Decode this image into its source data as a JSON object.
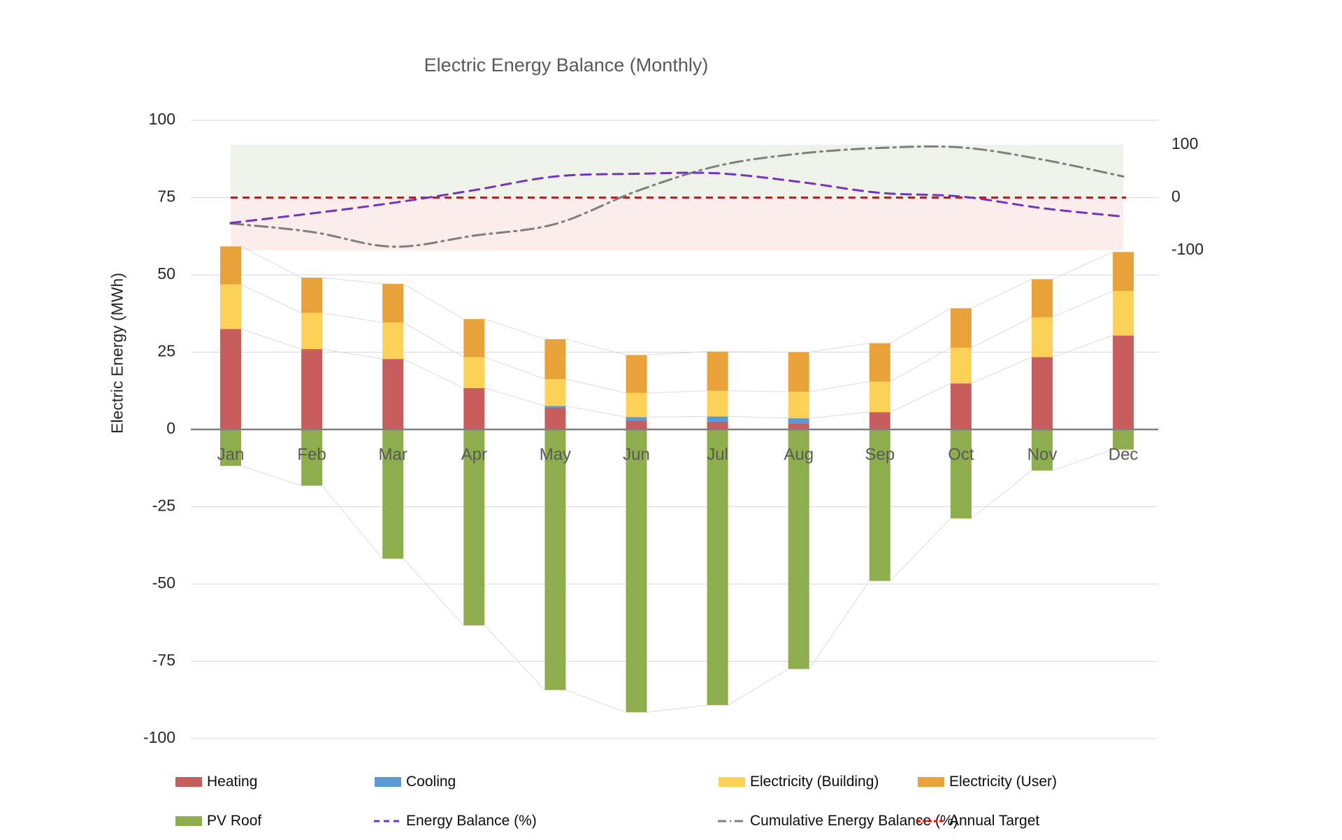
{
  "window": {
    "background": "#ffffff"
  },
  "chart_data": {
    "type": "bar",
    "subtype": "stacked-bar-with-lines-combo",
    "title": "Electric Energy Balance (Monthly)",
    "ylabel_left": "Electric Energy (MWh)",
    "categories": [
      "Jan",
      "Feb",
      "Mar",
      "Apr",
      "May",
      "Jun",
      "Jul",
      "Aug",
      "Sep",
      "Oct",
      "Nov",
      "Dec"
    ],
    "axis_left": {
      "min": -100,
      "max": 100,
      "step": 25,
      "ticks": [
        100,
        75,
        50,
        25,
        0,
        -25,
        -50,
        -75,
        -100
      ],
      "unit": "MWh"
    },
    "axis_right": {
      "min": -100,
      "max": 100,
      "ticks": [
        100,
        0,
        -100
      ],
      "unit": "%"
    },
    "grid": true,
    "legend_position": "bottom",
    "series": [
      {
        "name": "Heating",
        "type": "bar",
        "axis": "left",
        "color": "#C75D5C",
        "values": [
          32.5,
          26.0,
          22.8,
          13.4,
          6.9,
          2.9,
          2.5,
          2.0,
          5.6,
          14.9,
          23.4,
          30.4
        ]
      },
      {
        "name": "Cooling",
        "type": "bar",
        "axis": "left",
        "color": "#5B9BD5",
        "values": [
          0,
          0,
          0,
          0,
          0.7,
          1.1,
          1.7,
          1.6,
          0,
          0,
          0,
          0
        ]
      },
      {
        "name": "Electricity (Building)",
        "type": "bar",
        "axis": "left",
        "color": "#FBD158",
        "values": [
          14.4,
          11.7,
          11.8,
          10.0,
          8.7,
          7.8,
          8.3,
          8.6,
          9.9,
          11.5,
          12.9,
          14.4
        ]
      },
      {
        "name": "Electricity (User)",
        "type": "bar",
        "axis": "left",
        "color": "#E9A23A",
        "values": [
          12.3,
          11.4,
          12.5,
          12.3,
          12.9,
          12.3,
          12.7,
          12.8,
          12.4,
          12.8,
          12.3,
          12.6
        ]
      },
      {
        "name": "PV Roof",
        "type": "bar",
        "axis": "left",
        "color": "#8EAE4E",
        "values": [
          -11.8,
          -18.2,
          -41.8,
          -63.4,
          -84.3,
          -91.5,
          -89.2,
          -77.5,
          -49.0,
          -28.8,
          -13.3,
          -6.5
        ]
      },
      {
        "name": "Energy Balance (%)",
        "type": "line",
        "axis": "right",
        "color": "#7533C4",
        "style": "dashed",
        "values": [
          -48,
          -30,
          -10,
          14,
          40,
          45,
          46,
          30,
          9,
          2,
          -20,
          -36
        ]
      },
      {
        "name": "Cumulative Energy Balance  (%)",
        "type": "line",
        "axis": "right",
        "color": "#7F7F7F",
        "style": "dash-dot",
        "values": [
          -49,
          -65,
          -93,
          -72,
          -50,
          12,
          60,
          83,
          94,
          95,
          72,
          40
        ]
      },
      {
        "name": "Annual Target",
        "type": "line",
        "axis": "right",
        "color": "#FF0000",
        "style": "short-dash",
        "values": [
          0,
          0,
          0,
          0,
          0,
          0,
          0,
          0,
          0,
          0,
          0,
          0
        ]
      }
    ],
    "bands": [
      {
        "name": "positive-band",
        "axis": "right",
        "from": 0,
        "to": 100,
        "color": "#EFF2E8"
      },
      {
        "name": "negative-band",
        "axis": "right",
        "from": -100,
        "to": 0,
        "color": "#FCEDED"
      }
    ]
  },
  "legend": {
    "rows": [
      {
        "items": [
          {
            "label": "Heating",
            "swatch": "rect",
            "color": "#C75D5C"
          },
          {
            "label": "Cooling",
            "swatch": "rect",
            "color": "#5B9BD5"
          },
          {
            "label": "Electricity (Building)",
            "swatch": "rect",
            "color": "#FBD158"
          },
          {
            "label": "Electricity (User)",
            "swatch": "rect",
            "color": "#E9A23A"
          }
        ]
      },
      {
        "items": [
          {
            "label": "PV Roof",
            "swatch": "rect",
            "color": "#8EAE4E"
          },
          {
            "label": "Energy Balance (%)",
            "swatch": "dashed-line",
            "color": "#7533C4"
          },
          {
            "label": "Cumulative Energy Balance  (%)",
            "swatch": "dash-dot-line",
            "color": "#7F7F7F"
          },
          {
            "label": "Annual Target",
            "swatch": "short-dash-line",
            "color": "#FF0000"
          }
        ]
      }
    ]
  },
  "colors": {
    "grid": "#D9D9D9",
    "zero_axis": "#7F7F7F",
    "connector": "#DCDCDC",
    "tick_text": "#262626",
    "month_text": "#595959",
    "title_text": "#595959"
  }
}
